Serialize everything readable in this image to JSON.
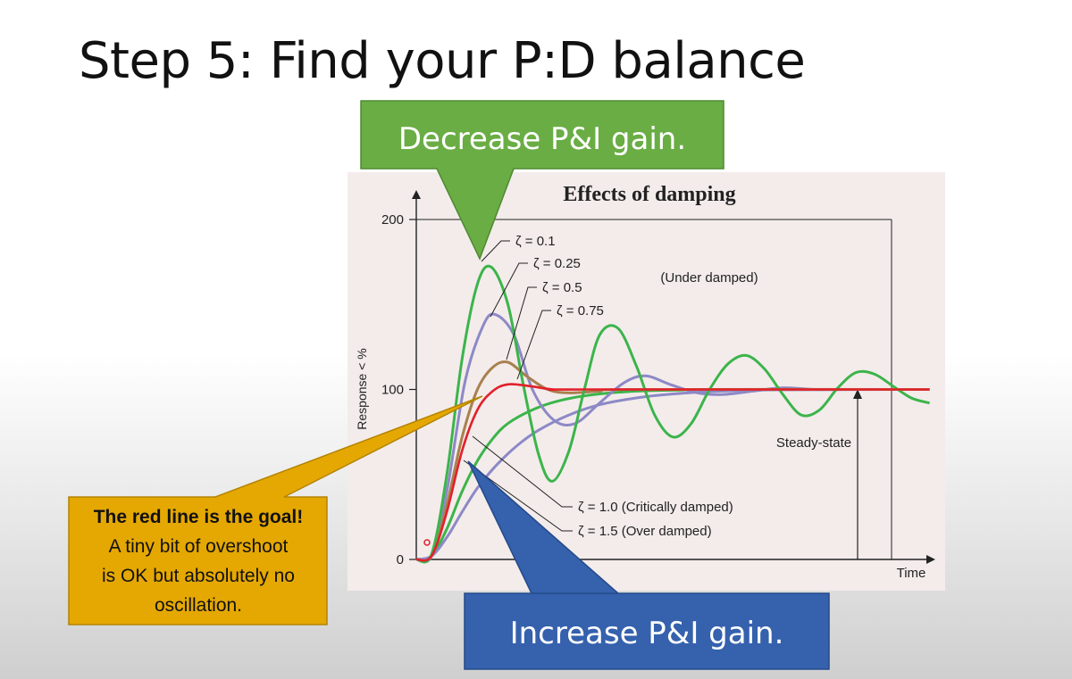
{
  "slide": {
    "title": "Step 5: Find your P:D balance"
  },
  "callouts": {
    "decrease": {
      "text": "Decrease P&I gain.",
      "color": "#6aad45",
      "border": "#4e8a31"
    },
    "increase": {
      "text": "Increase P&I gain.",
      "color": "#3561ad",
      "border": "#244a8a"
    },
    "goal": {
      "line1": "The red line is the goal!",
      "line2": "A tiny bit of overshoot",
      "line3": "is OK but absolutely no",
      "line4": "oscillation.",
      "color": "#e5a802",
      "border": "#b38300"
    }
  },
  "chart_data": {
    "type": "line",
    "title": "Effects of damping",
    "xlabel": "Time",
    "ylabel": "Response < %",
    "yticks": [
      0,
      100,
      200
    ],
    "ylim": [
      0,
      200
    ],
    "grid": false,
    "annotations": {
      "under_damped": "(Under damped)",
      "steady_state": "Steady-state"
    },
    "series": [
      {
        "name": "ζ = 0.1",
        "color": "#3cb44b",
        "points": [
          [
            0,
            0
          ],
          [
            0.5,
            3
          ],
          [
            1,
            50
          ],
          [
            1.5,
            118
          ],
          [
            2,
            162
          ],
          [
            2.45,
            172
          ],
          [
            3,
            150
          ],
          [
            3.5,
            103
          ],
          [
            4,
            62
          ],
          [
            4.45,
            46
          ],
          [
            5,
            64
          ],
          [
            5.5,
            100
          ],
          [
            6,
            132
          ],
          [
            6.6,
            136
          ],
          [
            7.2,
            114
          ],
          [
            7.8,
            85
          ],
          [
            8.4,
            72
          ],
          [
            9,
            80
          ],
          [
            9.6,
            100
          ],
          [
            10.2,
            115
          ],
          [
            10.8,
            120
          ],
          [
            11.4,
            112
          ],
          [
            12,
            97
          ],
          [
            12.6,
            85
          ],
          [
            13.2,
            88
          ],
          [
            13.8,
            101
          ],
          [
            14.4,
            110
          ],
          [
            15,
            109
          ],
          [
            15.6,
            102
          ],
          [
            16.2,
            95
          ],
          [
            16.8,
            92
          ]
        ]
      },
      {
        "name": "ζ = 0.25",
        "color": "#8d89c6",
        "points": [
          [
            0,
            0
          ],
          [
            0.5,
            2
          ],
          [
            1,
            40
          ],
          [
            1.6,
            105
          ],
          [
            2.2,
            138
          ],
          [
            2.6,
            144
          ],
          [
            3.2,
            132
          ],
          [
            3.8,
            100
          ],
          [
            4.5,
            82
          ],
          [
            5.2,
            80
          ],
          [
            6,
            92
          ],
          [
            6.8,
            104
          ],
          [
            7.5,
            108
          ],
          [
            8.3,
            103
          ],
          [
            9.2,
            98
          ],
          [
            10,
            97
          ],
          [
            11,
            99
          ],
          [
            12,
            101
          ],
          [
            13,
            100
          ],
          [
            14,
            100
          ],
          [
            16.8,
            100
          ]
        ]
      },
      {
        "name": "ζ = 0.5",
        "color": "#a9804f",
        "points": [
          [
            0,
            0
          ],
          [
            0.5,
            2
          ],
          [
            1,
            32
          ],
          [
            1.5,
            72
          ],
          [
            2,
            100
          ],
          [
            2.5,
            113
          ],
          [
            3,
            116
          ],
          [
            3.6,
            108
          ],
          [
            4.3,
            100
          ],
          [
            5,
            98
          ],
          [
            6,
            99
          ],
          [
            7,
            100
          ],
          [
            16.8,
            100
          ]
        ]
      },
      {
        "name": "ζ = 0.75",
        "color": "#e3202a",
        "points": [
          [
            0,
            0
          ],
          [
            0.5,
            2
          ],
          [
            1,
            28
          ],
          [
            1.5,
            64
          ],
          [
            2,
            88
          ],
          [
            2.5,
            99
          ],
          [
            3,
            103
          ],
          [
            3.7,
            102
          ],
          [
            4.5,
            100
          ],
          [
            5.5,
            100
          ],
          [
            16.8,
            100
          ]
        ]
      },
      {
        "name": "ζ = 1.0 (Critically damped)",
        "color": "#3cb44b",
        "points": [
          [
            0,
            0
          ],
          [
            0.5,
            2
          ],
          [
            1,
            18
          ],
          [
            1.5,
            40
          ],
          [
            2,
            58
          ],
          [
            2.5,
            71
          ],
          [
            3,
            80
          ],
          [
            3.8,
            88
          ],
          [
            4.6,
            93
          ],
          [
            5.6,
            96.5
          ],
          [
            7,
            98.8
          ],
          [
            8.5,
            99.6
          ],
          [
            10,
            100
          ],
          [
            16.8,
            100
          ]
        ]
      },
      {
        "name": "ζ = 1.5 (Over damped)",
        "color": "#8d89c6",
        "points": [
          [
            0,
            0
          ],
          [
            0.5,
            2
          ],
          [
            1,
            13
          ],
          [
            1.5,
            28
          ],
          [
            2,
            42
          ],
          [
            2.6,
            55
          ],
          [
            3.3,
            67
          ],
          [
            4,
            76
          ],
          [
            5,
            85
          ],
          [
            6,
            91
          ],
          [
            7.2,
            95
          ],
          [
            8.5,
            97.5
          ],
          [
            10,
            99
          ],
          [
            12,
            99.8
          ],
          [
            16.8,
            100
          ]
        ]
      }
    ]
  }
}
